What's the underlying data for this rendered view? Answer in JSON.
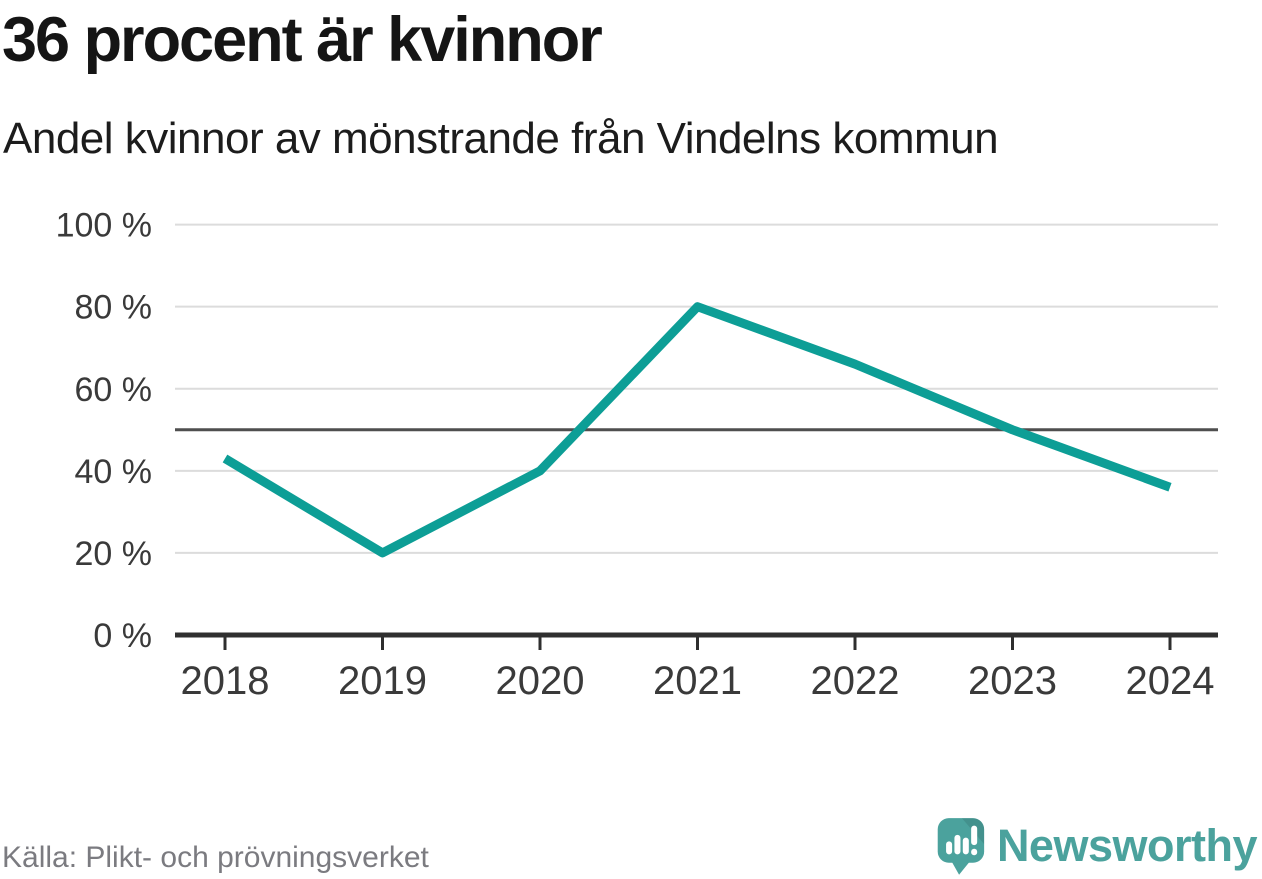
{
  "header": {
    "title": "36 procent är kvinnor",
    "subtitle": "Andel kvinnor av mönstrande från Vindelns kommun"
  },
  "chart_data": {
    "type": "line",
    "title": "36 procent är kvinnor",
    "subtitle": "Andel kvinnor av mönstrande från Vindelns kommun",
    "categories": [
      "2018",
      "2019",
      "2020",
      "2021",
      "2022",
      "2023",
      "2024"
    ],
    "values": [
      43,
      20,
      40,
      80,
      66,
      50,
      36
    ],
    "series_name": "Andel kvinnor av mönstrande",
    "unit": "%",
    "ylim": [
      0,
      100
    ],
    "yticks": [
      0,
      20,
      40,
      60,
      80,
      100
    ],
    "ytick_suffix": " %",
    "reference_line": {
      "value": 50
    },
    "grid": true,
    "legend": "none",
    "colors": {
      "line": "#0d9e96",
      "gridline": "#dcdcdc",
      "reference_line": "#4f4f4f",
      "axis": "#2f2f2f",
      "tick_label": "#3a3a3a"
    }
  },
  "footer": {
    "source": "Källa: Plikt- och prövningsverket",
    "brand": "Newsworthy",
    "brand_color": "#4ba29d",
    "logo_bubble_color": "#4ba29d"
  }
}
